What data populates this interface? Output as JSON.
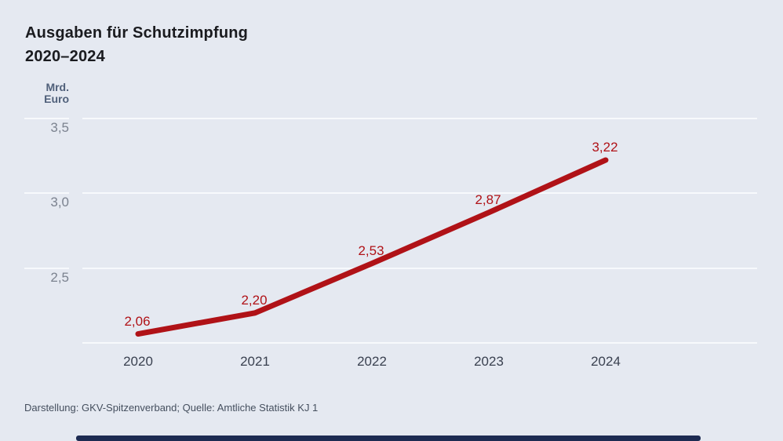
{
  "title": {
    "line1": "Ausgaben für Schutzimpfung",
    "line2": "2020–2024"
  },
  "y_axis": {
    "unit_line1": "Mrd.",
    "unit_line2": "Euro",
    "ticks": [
      {
        "label": "3,5",
        "value": 3.5
      },
      {
        "label": "3,0",
        "value": 3.0
      },
      {
        "label": "2,5",
        "value": 2.5
      }
    ],
    "baseline_value": 2.0
  },
  "source": "Darstellung: GKV-Spitzenverband; Quelle: Amtliche Statistik KJ 1",
  "colors": {
    "background": "#e5e9f1",
    "gridline": "#f7f9fc",
    "line": "#b01217",
    "value_label": "#b01217",
    "title_text": "#1a1b1f",
    "x_tick_text": "#3a4150",
    "y_tick_text": "#7b828f",
    "unit_text": "#50607a",
    "source_text": "#454f5e",
    "footer_bar": "#1d2b52"
  },
  "chart_data": {
    "type": "line",
    "title": "Ausgaben für Schutzimpfung 2020–2024",
    "categories": [
      "2020",
      "2021",
      "2022",
      "2023",
      "2024"
    ],
    "values": [
      2.06,
      2.2,
      2.53,
      2.87,
      3.22
    ],
    "value_labels": [
      "2,06",
      "2,20",
      "2,53",
      "2,87",
      "3,22"
    ],
    "xlabel": "",
    "ylabel": "Mrd. Euro",
    "ylim": [
      2.0,
      3.6
    ],
    "yticks": [
      2.5,
      3.0,
      3.5
    ],
    "grid": "horizontal",
    "legend": "none"
  }
}
